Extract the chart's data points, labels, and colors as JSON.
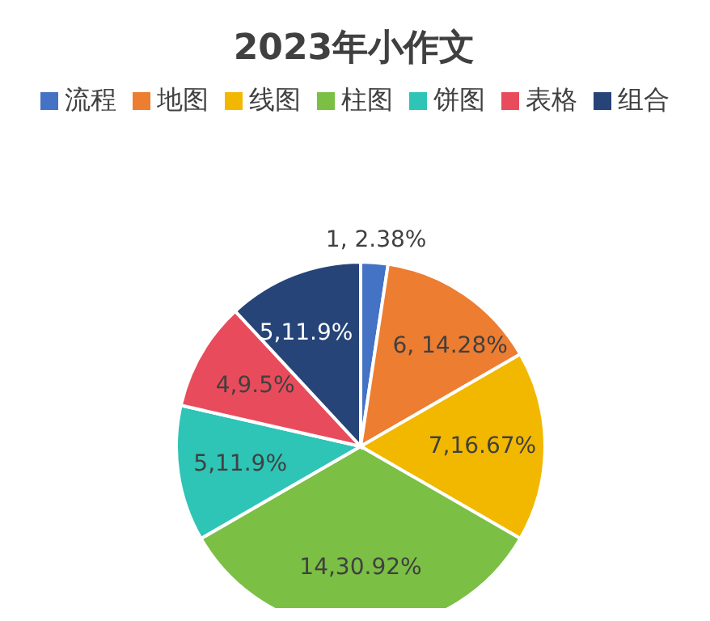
{
  "chart_data": {
    "type": "pie",
    "title": "2023年小作文",
    "categories": [
      "流程",
      "地图",
      "线图",
      "柱图",
      "饼图",
      "表格",
      "组合"
    ],
    "values": [
      1,
      6,
      7,
      14,
      5,
      4,
      5
    ],
    "colors": [
      "#4472c4",
      "#ed7d31",
      "#f2b800",
      "#7bbf44",
      "#2ec4b6",
      "#e84c5c",
      "#264478"
    ],
    "value_labels": [
      "1, 2.38%",
      "6, 14.28%",
      "7,16.67%",
      "14,30.92%",
      "5,11.9%",
      "4,9.5%",
      "5,11.9%"
    ],
    "legend": "top"
  }
}
